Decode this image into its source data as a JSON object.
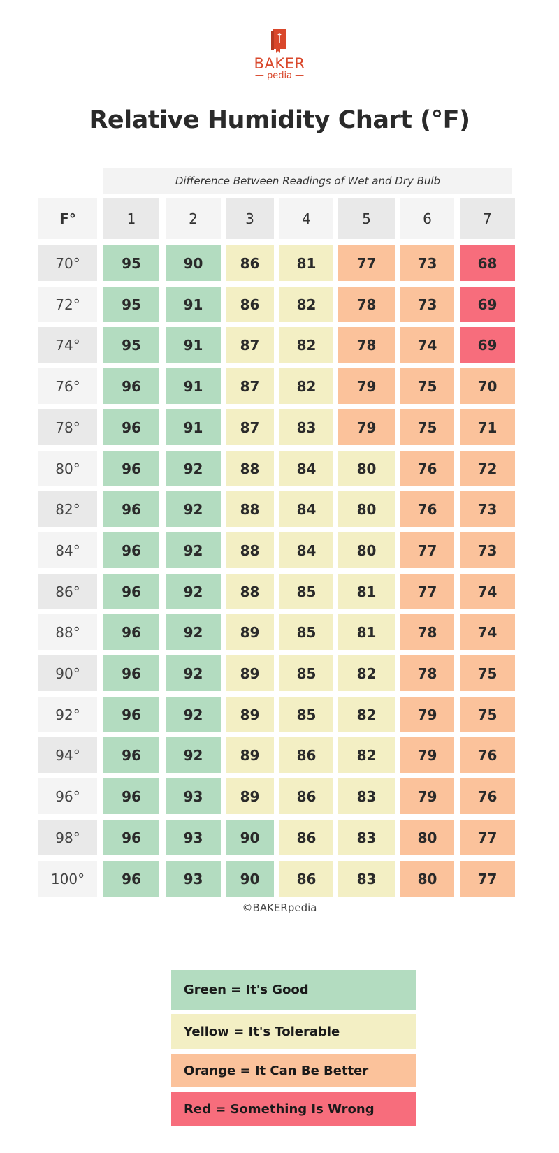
{
  "logo": {
    "line1": "BAKER",
    "line2": "— pedia —",
    "brand_color": "#d9472b"
  },
  "chart_data": {
    "type": "table",
    "title": "Relative Humidity Chart (°F)",
    "column_group_label": "Difference Between Readings of Wet and Dry Bulb",
    "row_header_label": "F°",
    "columns": [
      "1",
      "2",
      "3",
      "4",
      "5",
      "6",
      "7"
    ],
    "rows": [
      "70°",
      "72°",
      "74°",
      "76°",
      "78°",
      "80°",
      "82°",
      "84°",
      "86°",
      "88°",
      "90°",
      "92°",
      "94°",
      "96°",
      "98°",
      "100°"
    ],
    "values": [
      [
        95,
        90,
        86,
        81,
        77,
        73,
        68
      ],
      [
        95,
        91,
        86,
        82,
        78,
        73,
        69
      ],
      [
        95,
        91,
        87,
        82,
        78,
        74,
        69
      ],
      [
        96,
        91,
        87,
        82,
        79,
        75,
        70
      ],
      [
        96,
        91,
        87,
        83,
        79,
        75,
        71
      ],
      [
        96,
        92,
        88,
        84,
        80,
        76,
        72
      ],
      [
        96,
        92,
        88,
        84,
        80,
        76,
        73
      ],
      [
        96,
        92,
        88,
        84,
        80,
        77,
        73
      ],
      [
        96,
        92,
        88,
        85,
        81,
        77,
        74
      ],
      [
        96,
        92,
        89,
        85,
        81,
        78,
        74
      ],
      [
        96,
        92,
        89,
        85,
        82,
        78,
        75
      ],
      [
        96,
        92,
        89,
        85,
        82,
        79,
        75
      ],
      [
        96,
        92,
        89,
        86,
        82,
        79,
        76
      ],
      [
        96,
        93,
        89,
        86,
        83,
        79,
        76
      ],
      [
        96,
        93,
        90,
        86,
        83,
        80,
        77
      ],
      [
        96,
        93,
        90,
        86,
        83,
        80,
        77
      ]
    ],
    "cell_status": [
      [
        "G",
        "G",
        "Y",
        "Y",
        "O",
        "O",
        "R"
      ],
      [
        "G",
        "G",
        "Y",
        "Y",
        "O",
        "O",
        "R"
      ],
      [
        "G",
        "G",
        "Y",
        "Y",
        "O",
        "O",
        "R"
      ],
      [
        "G",
        "G",
        "Y",
        "Y",
        "O",
        "O",
        "O"
      ],
      [
        "G",
        "G",
        "Y",
        "Y",
        "O",
        "O",
        "O"
      ],
      [
        "G",
        "G",
        "Y",
        "Y",
        "Y",
        "O",
        "O"
      ],
      [
        "G",
        "G",
        "Y",
        "Y",
        "Y",
        "O",
        "O"
      ],
      [
        "G",
        "G",
        "Y",
        "Y",
        "Y",
        "O",
        "O"
      ],
      [
        "G",
        "G",
        "Y",
        "Y",
        "Y",
        "O",
        "O"
      ],
      [
        "G",
        "G",
        "Y",
        "Y",
        "Y",
        "O",
        "O"
      ],
      [
        "G",
        "G",
        "Y",
        "Y",
        "Y",
        "O",
        "O"
      ],
      [
        "G",
        "G",
        "Y",
        "Y",
        "Y",
        "O",
        "O"
      ],
      [
        "G",
        "G",
        "Y",
        "Y",
        "Y",
        "O",
        "O"
      ],
      [
        "G",
        "G",
        "Y",
        "Y",
        "Y",
        "O",
        "O"
      ],
      [
        "G",
        "G",
        "G",
        "Y",
        "Y",
        "O",
        "O"
      ],
      [
        "G",
        "G",
        "G",
        "Y",
        "Y",
        "O",
        "O"
      ]
    ],
    "status_colors": {
      "G": "#b3dcc0",
      "Y": "#f3efc4",
      "O": "#fbc29b",
      "R": "#f76d7c"
    }
  },
  "copyright": "©BAKERpedia",
  "legend": [
    {
      "label": "Green = It's Good",
      "color": "#b3dcc0"
    },
    {
      "label": "Yellow = It's Tolerable",
      "color": "#f3efc4"
    },
    {
      "label": "Orange = It Can Be Better",
      "color": "#fbc29b"
    },
    {
      "label": "Red = Something Is Wrong",
      "color": "#f76d7c"
    }
  ]
}
